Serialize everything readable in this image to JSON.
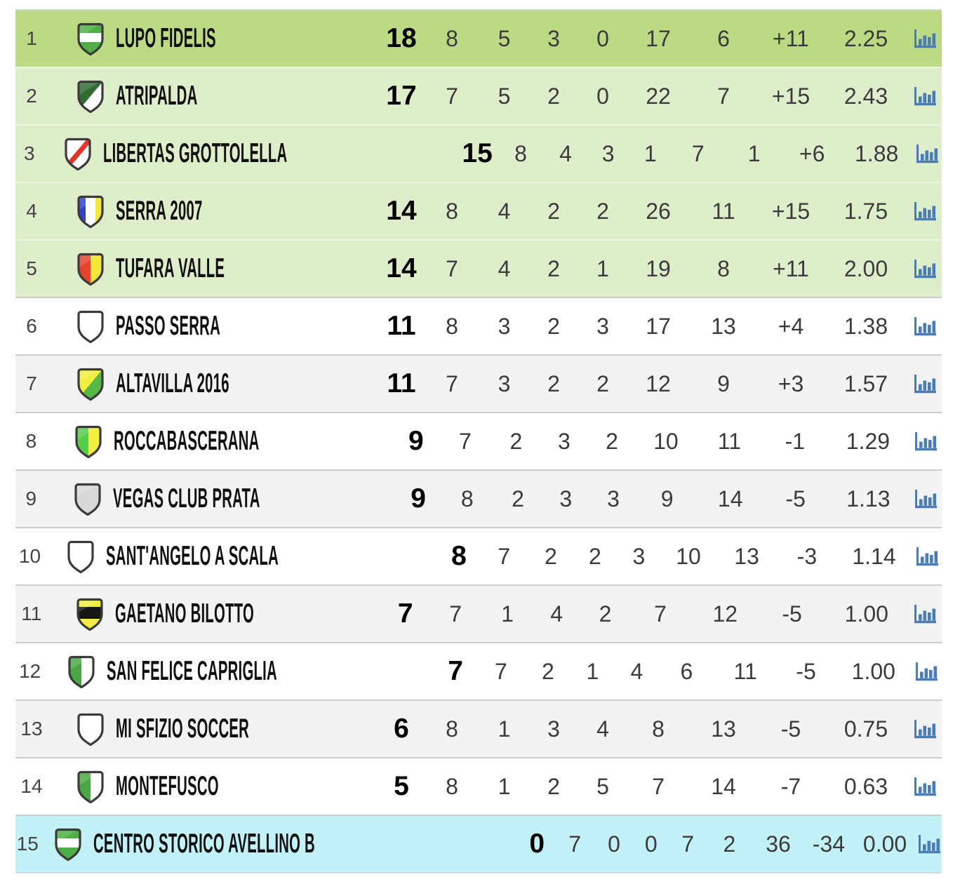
{
  "table": {
    "colors": {
      "leader_row": "#bcd983",
      "promotion_row": "#dfeeca",
      "row_white": "#ffffff",
      "row_gray": "#f3f3f3",
      "relegation_row": "#c2f1f8",
      "separator": "#cccccc",
      "separator_light": "#eef5e0",
      "top_border": "#d6d6d6",
      "icon_blue": "#4a7cb5",
      "points_text": "#000000",
      "number_text": "#3b3b3b",
      "name_text": "#101010",
      "badge_outline": "#3b3b3b"
    },
    "rows": [
      {
        "pos": "1",
        "team": "LUPO FIDELIS",
        "points": "18",
        "played": "8",
        "won": "5",
        "drawn": "3",
        "lost": "0",
        "gf": "17",
        "ga": "6",
        "diff": "+11",
        "avg": "2.25",
        "zone": "leader",
        "badge": {
          "type": "hband",
          "colors": [
            "#4fae47",
            "#ffffff"
          ],
          "band": [
            17,
            30
          ]
        }
      },
      {
        "pos": "2",
        "team": "ATRIPALDA",
        "points": "17",
        "played": "7",
        "won": "5",
        "drawn": "2",
        "lost": "0",
        "gf": "22",
        "ga": "7",
        "diff": "+15",
        "avg": "2.43",
        "zone": "promotion",
        "badge": {
          "type": "diagonal",
          "colors": [
            "#2e6c30",
            "#ffffff"
          ]
        }
      },
      {
        "pos": "3",
        "team": "LIBERTAS GROTTOLELLA",
        "points": "15",
        "played": "8",
        "won": "4",
        "drawn": "3",
        "lost": "1",
        "gf": "7",
        "ga": "1",
        "diff": "+6",
        "avg": "1.88",
        "zone": "promotion",
        "badge": {
          "type": "diagonal-stripe",
          "colors": [
            "#ffffff",
            "#e6332a"
          ]
        }
      },
      {
        "pos": "4",
        "team": "SERRA 2007",
        "points": "14",
        "played": "8",
        "won": "4",
        "drawn": "2",
        "lost": "2",
        "gf": "26",
        "ga": "11",
        "diff": "+15",
        "avg": "1.75",
        "zone": "promotion",
        "badge": {
          "type": "vertical-3",
          "colors": [
            "#3142cd",
            "#ffffff",
            "#f1e93e"
          ]
        }
      },
      {
        "pos": "5",
        "team": "TUFARA VALLE",
        "points": "14",
        "played": "7",
        "won": "4",
        "drawn": "2",
        "lost": "1",
        "gf": "19",
        "ga": "8",
        "diff": "+11",
        "avg": "2.00",
        "zone": "promotion",
        "badge": {
          "type": "vertical-2",
          "colors": [
            "#e5432b",
            "#f4e73c"
          ]
        }
      },
      {
        "pos": "6",
        "team": "PASSO SERRA",
        "points": "11",
        "played": "8",
        "won": "3",
        "drawn": "2",
        "lost": "3",
        "gf": "17",
        "ga": "13",
        "diff": "+4",
        "avg": "1.38",
        "zone": "white",
        "badge": {
          "type": "solid",
          "colors": [
            "#ffffff"
          ]
        }
      },
      {
        "pos": "7",
        "team": "ALTAVILLA 2016",
        "points": "11",
        "played": "7",
        "won": "3",
        "drawn": "2",
        "lost": "2",
        "gf": "12",
        "ga": "9",
        "diff": "+3",
        "avg": "1.57",
        "zone": "gray",
        "badge": {
          "type": "diagonal",
          "colors": [
            "#f2ee3e",
            "#55b845"
          ]
        }
      },
      {
        "pos": "8",
        "team": "ROCCABASCERANA",
        "points": "9",
        "played": "7",
        "won": "2",
        "drawn": "3",
        "lost": "2",
        "gf": "10",
        "ga": "11",
        "diff": "-1",
        "avg": "1.29",
        "zone": "white",
        "badge": {
          "type": "vertical-2",
          "colors": [
            "#58cc49",
            "#f1ee3f"
          ]
        }
      },
      {
        "pos": "9",
        "team": "VEGAS CLUB PRATA",
        "points": "9",
        "played": "8",
        "won": "2",
        "drawn": "3",
        "lost": "3",
        "gf": "9",
        "ga": "14",
        "diff": "-5",
        "avg": "1.13",
        "zone": "gray",
        "badge": {
          "type": "solid",
          "colors": [
            "#d8d8d8"
          ]
        }
      },
      {
        "pos": "10",
        "team": "SANT'ANGELO A SCALA",
        "points": "8",
        "played": "7",
        "won": "2",
        "drawn": "2",
        "lost": "3",
        "gf": "10",
        "ga": "13",
        "diff": "-3",
        "avg": "1.14",
        "zone": "white",
        "badge": {
          "type": "solid",
          "colors": [
            "#ffffff"
          ]
        }
      },
      {
        "pos": "11",
        "team": "GAETANO BILOTTO",
        "points": "7",
        "played": "7",
        "won": "1",
        "drawn": "4",
        "lost": "2",
        "gf": "7",
        "ga": "12",
        "diff": "-5",
        "avg": "1.00",
        "zone": "gray",
        "badge": {
          "type": "hband",
          "colors": [
            "#f1ee3f",
            "#161616"
          ],
          "band": [
            15,
            32
          ]
        }
      },
      {
        "pos": "12",
        "team": "SAN FELICE CAPRIGLIA",
        "points": "7",
        "played": "7",
        "won": "2",
        "drawn": "1",
        "lost": "4",
        "gf": "6",
        "ga": "11",
        "diff": "-5",
        "avg": "1.00",
        "zone": "white",
        "badge": {
          "type": "vertical-2",
          "colors": [
            "#4aa844",
            "#ffffff"
          ]
        }
      },
      {
        "pos": "13",
        "team": "MI SFIZIO SOCCER",
        "points": "6",
        "played": "8",
        "won": "1",
        "drawn": "3",
        "lost": "4",
        "gf": "8",
        "ga": "13",
        "diff": "-5",
        "avg": "0.75",
        "zone": "gray",
        "badge": {
          "type": "solid",
          "colors": [
            "#ffffff"
          ]
        }
      },
      {
        "pos": "14",
        "team": "MONTEFUSCO",
        "points": "5",
        "played": "8",
        "won": "1",
        "drawn": "2",
        "lost": "5",
        "gf": "7",
        "ga": "14",
        "diff": "-7",
        "avg": "0.63",
        "zone": "white",
        "badge": {
          "type": "vertical-2",
          "colors": [
            "#4aa844",
            "#ffffff"
          ]
        }
      },
      {
        "pos": "15",
        "team": "CENTRO STORICO AVELLINO B",
        "points": "0",
        "played": "7",
        "won": "0",
        "drawn": "0",
        "lost": "7",
        "gf": "2",
        "ga": "36",
        "diff": "-34",
        "avg": "0.00",
        "zone": "relegation",
        "badge": {
          "type": "hband",
          "colors": [
            "#4fae47",
            "#ffffff"
          ],
          "band": [
            17,
            30
          ]
        }
      }
    ]
  }
}
